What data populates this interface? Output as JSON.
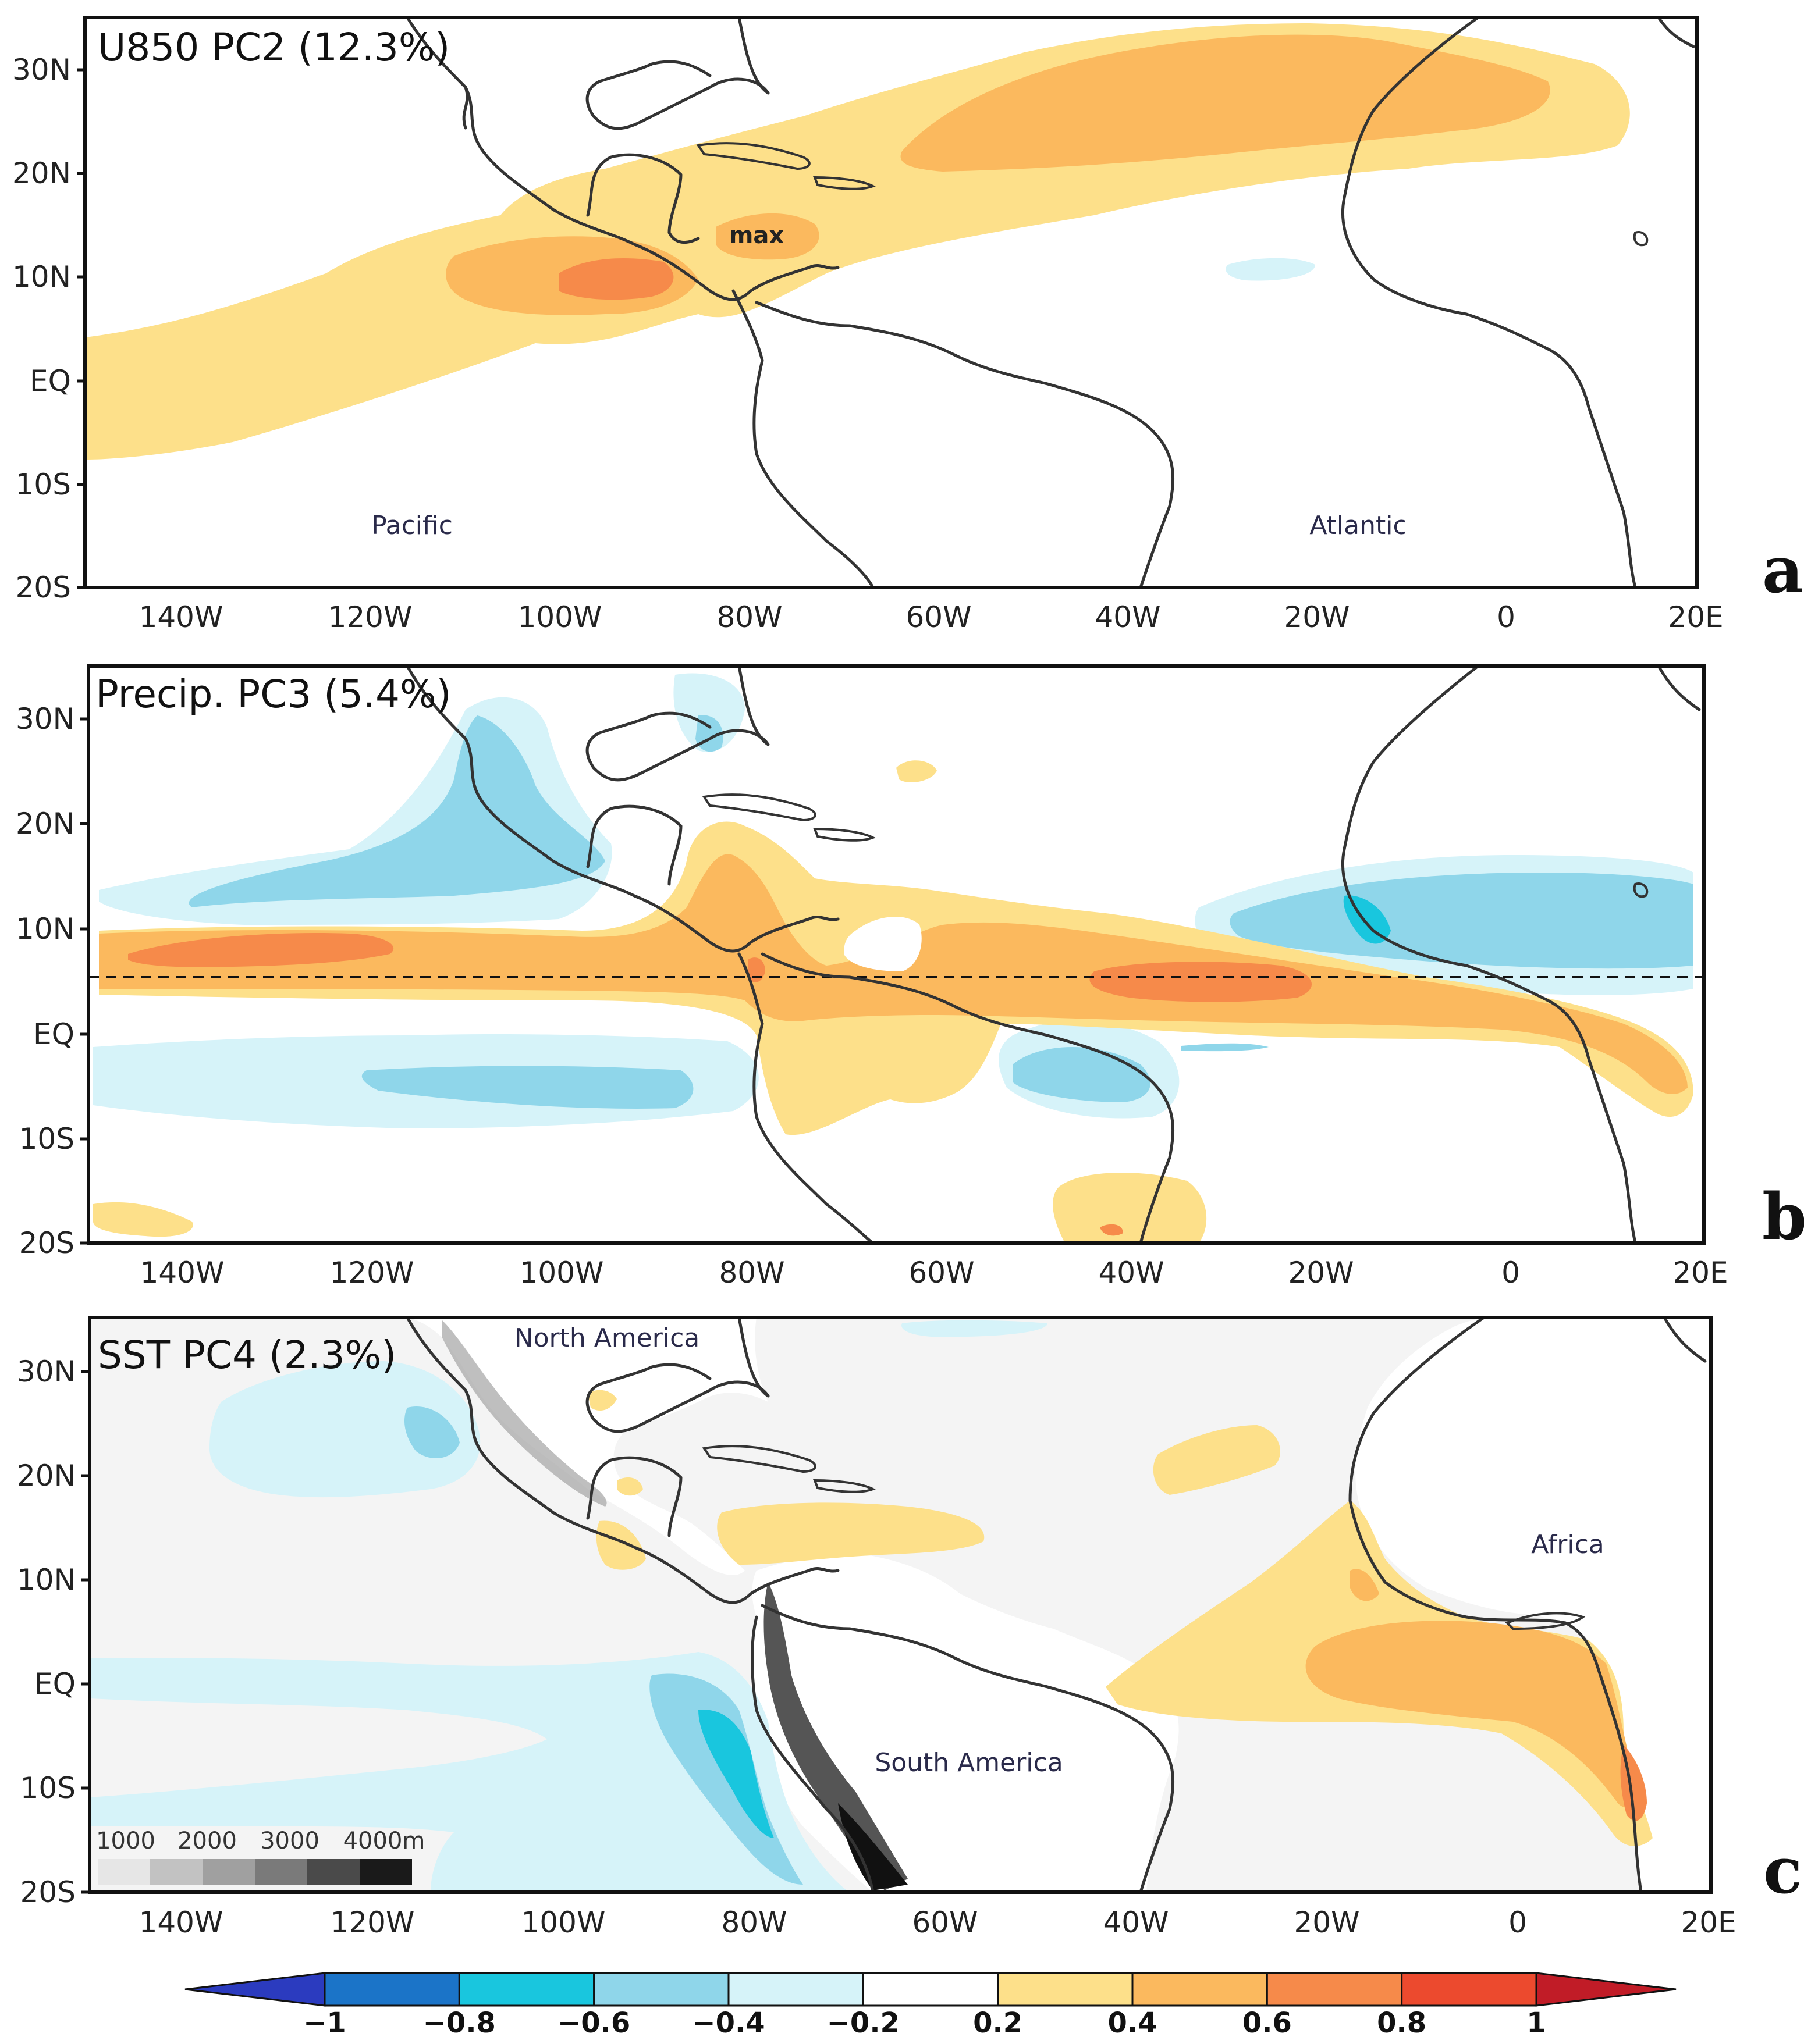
{
  "figure": {
    "lat_labels": [
      "30N",
      "20N",
      "10N",
      "EQ",
      "10S",
      "20S"
    ],
    "lon_labels": [
      "140W",
      "120W",
      "100W",
      "80W",
      "60W",
      "40W",
      "20W",
      "0",
      "20E"
    ]
  },
  "panels": [
    {
      "id": "a",
      "title": "U850 PC2 (12.3%)",
      "letter": "a",
      "region_labels": [
        "Pacific",
        "Atlantic"
      ],
      "max_label": "max"
    },
    {
      "id": "b",
      "title": "Precip. PC3 (5.4%)",
      "letter": "b"
    },
    {
      "id": "c",
      "title": "SST PC4 (2.3%)",
      "letter": "c",
      "region_labels": [
        "North America",
        "South America",
        "Africa"
      ],
      "elevation_labels": [
        "1000",
        "2000",
        "3000",
        "4000m"
      ]
    }
  ],
  "colorbar": {
    "labels": [
      "−1",
      "−0.8",
      "−0.6",
      "−0.4",
      "−0.2",
      "0.2",
      "0.4",
      "0.6",
      "0.8",
      "1"
    ],
    "colors": [
      "#2b3bbf",
      "#1b74c8",
      "#19c6de",
      "#8fd6ea",
      "#d6f3f9",
      "#ffffff",
      "#fde08a",
      "#fbb95e",
      "#f68a4a",
      "#ec4a2e",
      "#c11c27"
    ]
  },
  "colors": {
    "c_lvl1": "#fde08a",
    "c_lvl2": "#fbb95e",
    "c_lvl3": "#f68a4a",
    "c_neg1": "#d6f3f9",
    "c_neg2": "#8fd6ea",
    "c_neg3": "#19c6de",
    "ocean_c": "#f4f4f4"
  }
}
